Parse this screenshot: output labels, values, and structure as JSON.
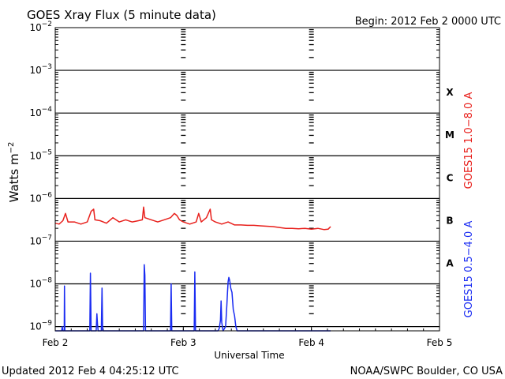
{
  "chart_data": {
    "type": "line",
    "title": "GOES Xray Flux (5 minute data)",
    "begin_text": "Begin:  2012 Feb 2 0000 UTC",
    "xlabel": "Universal Time",
    "ylabel_base": "Watts m",
    "ylabel_exp": "−2",
    "x_ticks": [
      {
        "day": 0,
        "label": "Feb 2"
      },
      {
        "day": 1,
        "label": "Feb 3"
      },
      {
        "day": 2,
        "label": "Feb 4"
      },
      {
        "day": 3,
        "label": "Feb 5"
      }
    ],
    "xlim_days": [
      0,
      3
    ],
    "ylim_log10": [
      -9.1,
      -2
    ],
    "y_ticks": [
      {
        "exp": -2,
        "base": "10",
        "sup": "−2"
      },
      {
        "exp": -3,
        "base": "10",
        "sup": "−3"
      },
      {
        "exp": -4,
        "base": "10",
        "sup": "−4"
      },
      {
        "exp": -5,
        "base": "10",
        "sup": "−5"
      },
      {
        "exp": -6,
        "base": "10",
        "sup": "−6"
      },
      {
        "exp": -7,
        "base": "10",
        "sup": "−7"
      },
      {
        "exp": -8,
        "base": "10",
        "sup": "−8"
      },
      {
        "exp": -9,
        "base": "10",
        "sup": "−9"
      }
    ],
    "flare_classes": [
      {
        "label": "X",
        "y_log10": -3.5
      },
      {
        "label": "M",
        "y_log10": -4.5
      },
      {
        "label": "C",
        "y_log10": -5.5
      },
      {
        "label": "B",
        "y_log10": -6.5
      },
      {
        "label": "A",
        "y_log10": -7.5
      }
    ],
    "series": [
      {
        "name": "GOES15 1.0−8.0 A",
        "color": "#e8201c",
        "points": [
          [
            0.0,
            -6.58
          ],
          [
            0.03,
            -6.6
          ],
          [
            0.06,
            -6.52
          ],
          [
            0.08,
            -6.35
          ],
          [
            0.1,
            -6.55
          ],
          [
            0.15,
            -6.55
          ],
          [
            0.2,
            -6.6
          ],
          [
            0.25,
            -6.55
          ],
          [
            0.28,
            -6.3
          ],
          [
            0.3,
            -6.25
          ],
          [
            0.31,
            -6.5
          ],
          [
            0.35,
            -6.52
          ],
          [
            0.4,
            -6.58
          ],
          [
            0.45,
            -6.45
          ],
          [
            0.5,
            -6.55
          ],
          [
            0.55,
            -6.5
          ],
          [
            0.6,
            -6.55
          ],
          [
            0.65,
            -6.52
          ],
          [
            0.68,
            -6.5
          ],
          [
            0.69,
            -6.2
          ],
          [
            0.7,
            -6.45
          ],
          [
            0.75,
            -6.5
          ],
          [
            0.8,
            -6.55
          ],
          [
            0.85,
            -6.5
          ],
          [
            0.9,
            -6.45
          ],
          [
            0.93,
            -6.35
          ],
          [
            0.95,
            -6.4
          ],
          [
            0.97,
            -6.5
          ],
          [
            1.0,
            -6.55
          ],
          [
            1.05,
            -6.6
          ],
          [
            1.1,
            -6.55
          ],
          [
            1.12,
            -6.35
          ],
          [
            1.14,
            -6.55
          ],
          [
            1.18,
            -6.45
          ],
          [
            1.21,
            -6.25
          ],
          [
            1.22,
            -6.5
          ],
          [
            1.25,
            -6.55
          ],
          [
            1.3,
            -6.6
          ],
          [
            1.35,
            -6.55
          ],
          [
            1.4,
            -6.62
          ],
          [
            1.45,
            -6.62
          ],
          [
            1.5,
            -6.63
          ],
          [
            1.55,
            -6.63
          ],
          [
            1.6,
            -6.64
          ],
          [
            1.65,
            -6.65
          ],
          [
            1.7,
            -6.66
          ],
          [
            1.75,
            -6.68
          ],
          [
            1.8,
            -6.7
          ],
          [
            1.85,
            -6.7
          ],
          [
            1.9,
            -6.71
          ],
          [
            1.95,
            -6.7
          ],
          [
            2.0,
            -6.72
          ],
          [
            2.05,
            -6.7
          ],
          [
            2.1,
            -6.73
          ],
          [
            2.13,
            -6.72
          ],
          [
            2.15,
            -6.66
          ]
        ]
      },
      {
        "name": "GOES15 0.5−4.0 A",
        "color": "#1a2cf2",
        "points": [
          [
            0.0,
            -9.2
          ],
          [
            0.05,
            -9.2
          ],
          [
            0.055,
            -9.0
          ],
          [
            0.06,
            -9.2
          ],
          [
            0.07,
            -9.1
          ],
          [
            0.072,
            -8.05
          ],
          [
            0.075,
            -9.2
          ],
          [
            0.1,
            -9.2
          ],
          [
            0.15,
            -9.2
          ],
          [
            0.2,
            -9.2
          ],
          [
            0.25,
            -9.2
          ],
          [
            0.27,
            -9.1
          ],
          [
            0.275,
            -7.75
          ],
          [
            0.28,
            -9.2
          ],
          [
            0.3,
            -9.2
          ],
          [
            0.32,
            -9.1
          ],
          [
            0.325,
            -8.7
          ],
          [
            0.33,
            -8.95
          ],
          [
            0.335,
            -9.2
          ],
          [
            0.36,
            -9.2
          ],
          [
            0.365,
            -8.1
          ],
          [
            0.37,
            -9.2
          ],
          [
            0.4,
            -9.2
          ],
          [
            0.45,
            -9.2
          ],
          [
            0.5,
            -9.2
          ],
          [
            0.55,
            -9.2
          ],
          [
            0.6,
            -9.2
          ],
          [
            0.65,
            -9.2
          ],
          [
            0.69,
            -9.2
          ],
          [
            0.695,
            -7.55
          ],
          [
            0.7,
            -7.8
          ],
          [
            0.705,
            -9.2
          ],
          [
            0.75,
            -9.2
          ],
          [
            0.8,
            -9.2
          ],
          [
            0.85,
            -9.2
          ],
          [
            0.88,
            -9.2
          ],
          [
            0.895,
            -9.1
          ],
          [
            0.9,
            -9.2
          ],
          [
            0.905,
            -8.0
          ],
          [
            0.91,
            -9.2
          ],
          [
            0.95,
            -9.2
          ],
          [
            1.0,
            -9.2
          ],
          [
            1.05,
            -9.2
          ],
          [
            1.085,
            -9.2
          ],
          [
            1.09,
            -7.72
          ],
          [
            1.095,
            -9.2
          ],
          [
            1.15,
            -9.2
          ],
          [
            1.2,
            -9.2
          ],
          [
            1.25,
            -9.2
          ],
          [
            1.27,
            -9.1
          ],
          [
            1.28,
            -9.05
          ],
          [
            1.29,
            -8.85
          ],
          [
            1.295,
            -8.4
          ],
          [
            1.3,
            -8.9
          ],
          [
            1.31,
            -9.2
          ],
          [
            1.33,
            -9.0
          ],
          [
            1.34,
            -8.5
          ],
          [
            1.345,
            -8.2
          ],
          [
            1.35,
            -7.95
          ],
          [
            1.355,
            -7.85
          ],
          [
            1.36,
            -7.9
          ],
          [
            1.365,
            -7.98
          ],
          [
            1.37,
            -8.1
          ],
          [
            1.38,
            -8.2
          ],
          [
            1.385,
            -8.4
          ],
          [
            1.39,
            -8.6
          ],
          [
            1.4,
            -8.75
          ],
          [
            1.41,
            -9.0
          ],
          [
            1.42,
            -9.2
          ],
          [
            1.45,
            -9.2
          ],
          [
            1.5,
            -9.2
          ],
          [
            1.55,
            -9.2
          ],
          [
            1.6,
            -9.2
          ],
          [
            1.65,
            -9.2
          ],
          [
            1.7,
            -9.2
          ],
          [
            1.75,
            -9.2
          ],
          [
            1.8,
            -9.2
          ],
          [
            1.85,
            -9.2
          ],
          [
            1.9,
            -9.2
          ],
          [
            1.95,
            -9.2
          ],
          [
            2.0,
            -9.2
          ],
          [
            2.05,
            -9.2
          ],
          [
            2.1,
            -9.2
          ],
          [
            2.15,
            -9.2
          ]
        ]
      }
    ]
  },
  "footer": {
    "updated": "Updated 2012 Feb  4 04:25:12 UTC",
    "credit": "NOAA/SWPC Boulder, CO USA"
  }
}
